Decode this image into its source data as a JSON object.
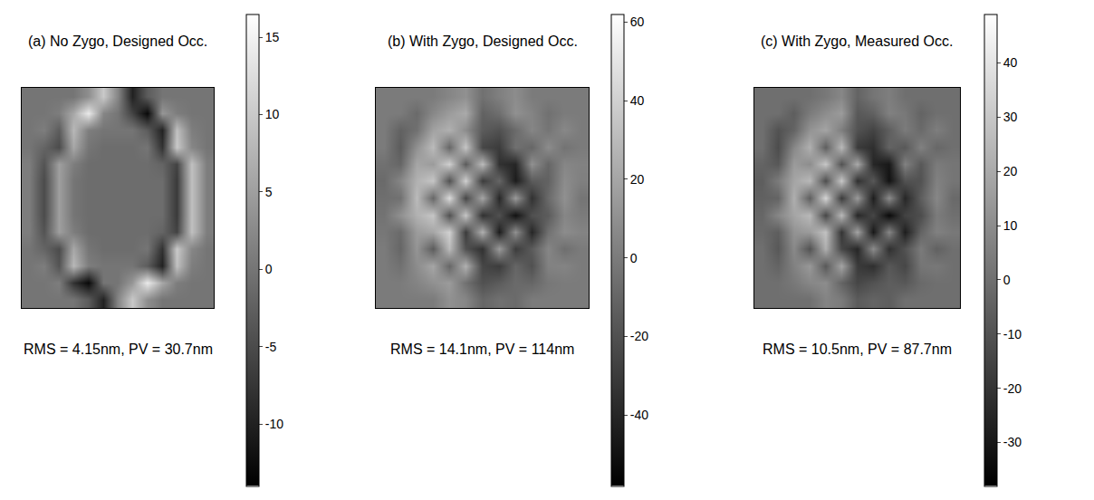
{
  "chart_data": [
    {
      "type": "heatmap",
      "title": "(a) No Zygo, Designed Occ.",
      "annotations": [
        "RMS = 4.15nm, PV = 30.7nm"
      ],
      "tick_labels": false,
      "color": "gray",
      "colorbar_range": [
        -14,
        16.5
      ],
      "colorbar_ticks": [
        -10,
        -5,
        0,
        5,
        10,
        15
      ],
      "cells": [
        [
          0,
          0,
          0,
          0,
          3,
          10,
          2,
          -10,
          -3,
          0,
          0,
          0,
          0
        ],
        [
          0,
          0,
          1,
          6,
          14,
          2,
          0,
          -6,
          -13,
          4,
          1,
          0,
          0
        ],
        [
          0,
          1,
          -3,
          8,
          1,
          0,
          0,
          0,
          -3,
          -10,
          9,
          1,
          0
        ],
        [
          0,
          -2,
          -5,
          6,
          0,
          -1,
          -1,
          -1,
          0,
          -8,
          10,
          2,
          0
        ],
        [
          1,
          -4,
          5,
          1,
          -1,
          -1,
          -1,
          -1,
          -1,
          -2,
          -6,
          9,
          1
        ],
        [
          1,
          -5,
          5,
          0,
          -1,
          -1,
          -1,
          -1,
          -1,
          -1,
          -7,
          9,
          1
        ],
        [
          1,
          -5,
          5,
          0,
          -1,
          -1,
          -1,
          -1,
          -1,
          -1,
          -7,
          9,
          1
        ],
        [
          1,
          -5,
          5,
          0,
          -1,
          -1,
          -1,
          -1,
          -1,
          -1,
          -7,
          9,
          1
        ],
        [
          1,
          -4,
          5,
          1,
          -1,
          -1,
          -1,
          -1,
          -1,
          -2,
          -6,
          9,
          1
        ],
        [
          0,
          -2,
          -5,
          6,
          0,
          -1,
          -1,
          -1,
          0,
          -8,
          10,
          2,
          0
        ],
        [
          0,
          1,
          -4,
          8,
          1,
          0,
          0,
          0,
          -3,
          -10,
          9,
          1,
          0
        ],
        [
          0,
          0,
          1,
          -8,
          -13,
          0,
          0,
          4,
          14,
          6,
          1,
          0,
          0
        ],
        [
          0,
          0,
          0,
          0,
          -3,
          -10,
          2,
          10,
          3,
          0,
          0,
          0,
          0
        ]
      ]
    },
    {
      "type": "heatmap",
      "title": "(b) With Zygo, Designed Occ.",
      "annotations": [
        "RMS = 14.1nm, PV = 114nm"
      ],
      "tick_labels": false,
      "color": "gray",
      "colorbar_range": [
        -58,
        62
      ],
      "colorbar_ticks": [
        -40,
        -20,
        0,
        20,
        40,
        60
      ],
      "cells": [
        [
          0,
          0,
          0,
          0,
          5,
          10,
          -5,
          2,
          8,
          0,
          0,
          0,
          0
        ],
        [
          0,
          0,
          -8,
          6,
          15,
          22,
          -12,
          -6,
          10,
          4,
          -5,
          0,
          0
        ],
        [
          0,
          -12,
          -5,
          18,
          25,
          8,
          -15,
          -20,
          -8,
          5,
          -3,
          6,
          0
        ],
        [
          0,
          -15,
          10,
          30,
          -10,
          35,
          -25,
          -30,
          -5,
          -10,
          8,
          -4,
          0
        ],
        [
          -5,
          -10,
          20,
          15,
          40,
          -15,
          30,
          -35,
          -40,
          10,
          -10,
          5,
          3
        ],
        [
          -8,
          5,
          25,
          35,
          -20,
          40,
          -30,
          -10,
          -45,
          -15,
          -12,
          8,
          2
        ],
        [
          -6,
          -5,
          30,
          -10,
          45,
          -25,
          20,
          -40,
          15,
          -35,
          -8,
          10,
          -3
        ],
        [
          -4,
          10,
          25,
          35,
          -20,
          35,
          -35,
          -20,
          -50,
          -20,
          -15,
          5,
          0
        ],
        [
          -2,
          -8,
          15,
          20,
          40,
          -30,
          25,
          -45,
          10,
          -40,
          -5,
          8,
          4
        ],
        [
          0,
          -10,
          12,
          -15,
          30,
          -20,
          -35,
          15,
          -30,
          -15,
          5,
          -6,
          0
        ],
        [
          0,
          -5,
          8,
          20,
          -10,
          25,
          -25,
          -30,
          -10,
          -20,
          3,
          4,
          0
        ],
        [
          0,
          0,
          4,
          10,
          15,
          -5,
          -20,
          -15,
          -8,
          -10,
          -2,
          0,
          0
        ],
        [
          0,
          0,
          0,
          0,
          10,
          5,
          -10,
          -5,
          -8,
          0,
          0,
          0,
          0
        ]
      ]
    },
    {
      "type": "heatmap",
      "title": "(c) With Zygo, Measured Occ.",
      "annotations": [
        "RMS = 10.5nm, PV = 87.7nm"
      ],
      "tick_labels": false,
      "color": "gray",
      "colorbar_range": [
        -38,
        49
      ],
      "colorbar_ticks": [
        -30,
        -20,
        -10,
        0,
        10,
        20,
        30,
        40
      ],
      "cells": [
        [
          0,
          0,
          0,
          0,
          3,
          8,
          -4,
          2,
          5,
          0,
          0,
          0,
          0
        ],
        [
          0,
          0,
          -6,
          4,
          10,
          15,
          -8,
          -5,
          6,
          3,
          -4,
          0,
          0
        ],
        [
          0,
          -10,
          -4,
          12,
          18,
          5,
          -10,
          -15,
          -6,
          4,
          -2,
          5,
          0
        ],
        [
          0,
          -12,
          8,
          22,
          -6,
          25,
          -18,
          -22,
          -4,
          -8,
          6,
          -3,
          0
        ],
        [
          -4,
          -8,
          15,
          10,
          30,
          -10,
          20,
          -25,
          -30,
          6,
          -8,
          4,
          2
        ],
        [
          -6,
          4,
          18,
          25,
          -12,
          30,
          -22,
          -8,
          -32,
          -10,
          -10,
          6,
          2
        ],
        [
          -5,
          -4,
          22,
          -6,
          35,
          -18,
          15,
          -28,
          10,
          -25,
          -6,
          8,
          -2
        ],
        [
          -3,
          8,
          18,
          25,
          -14,
          25,
          -25,
          -14,
          -35,
          -15,
          -12,
          4,
          0
        ],
        [
          -2,
          -6,
          12,
          15,
          28,
          -20,
          18,
          -30,
          8,
          -28,
          -4,
          6,
          3
        ],
        [
          0,
          -8,
          9,
          -10,
          22,
          -14,
          -25,
          10,
          -22,
          -10,
          4,
          -5,
          0
        ],
        [
          0,
          -4,
          6,
          14,
          -8,
          18,
          -18,
          -22,
          -8,
          -14,
          2,
          3,
          0
        ],
        [
          0,
          0,
          3,
          8,
          10,
          -4,
          -14,
          -10,
          -6,
          -8,
          -2,
          0,
          0
        ],
        [
          0,
          0,
          0,
          0,
          7,
          4,
          -7,
          -4,
          -6,
          0,
          0,
          0,
          0
        ]
      ]
    }
  ]
}
